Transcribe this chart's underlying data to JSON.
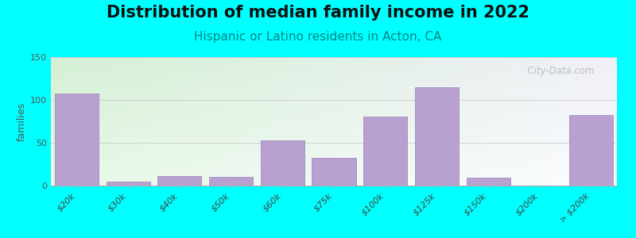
{
  "title": "Distribution of median family income in 2022",
  "subtitle": "Hispanic or Latino residents in Acton, CA",
  "ylabel": "families",
  "background_color": "#00FFFF",
  "plot_bg_left_color": "#d4f0d4",
  "plot_bg_right_color": "#f0f0f8",
  "bar_color": "#b8a0d0",
  "bar_edge_color": "#9980b8",
  "categories": [
    "$20k",
    "$30k",
    "$40k",
    "$50k",
    "$60k",
    "$75k",
    "$100k",
    "$125k",
    "$150k",
    "$200k",
    "> $200k"
  ],
  "values": [
    107,
    5,
    11,
    10,
    53,
    32,
    81,
    115,
    9,
    0,
    82
  ],
  "ylim": [
    0,
    150
  ],
  "yticks": [
    0,
    50,
    100,
    150
  ],
  "title_fontsize": 15,
  "subtitle_fontsize": 11,
  "ylabel_fontsize": 9,
  "watermark": "  City-Data.com"
}
